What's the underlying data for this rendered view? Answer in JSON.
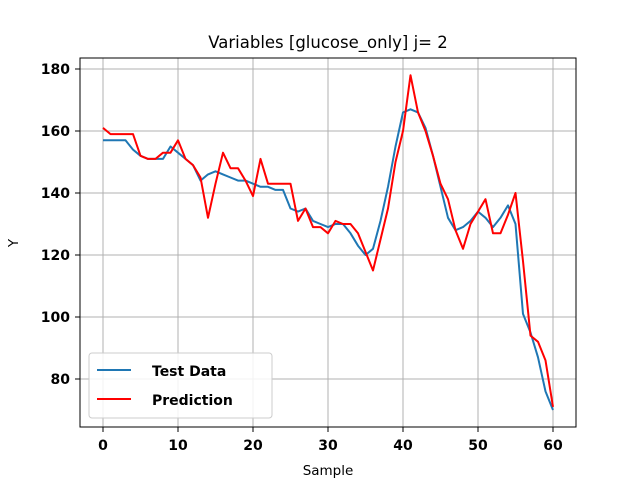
{
  "chart_data": {
    "type": "line",
    "title": "Variables [glucose_only] j= 2",
    "xlabel": "Sample",
    "ylabel": "Y",
    "xlim": [
      -3,
      63
    ],
    "ylim": [
      65,
      185
    ],
    "xticks": [
      0,
      10,
      20,
      30,
      40,
      50,
      60
    ],
    "yticks": [
      80,
      100,
      120,
      140,
      160,
      180
    ],
    "grid": true,
    "legend_position": "lower left",
    "x": [
      0,
      1,
      2,
      3,
      4,
      5,
      6,
      7,
      8,
      9,
      10,
      11,
      12,
      13,
      14,
      15,
      16,
      17,
      18,
      19,
      20,
      21,
      22,
      23,
      24,
      25,
      26,
      27,
      28,
      29,
      30,
      31,
      32,
      33,
      34,
      35,
      36,
      37,
      38,
      39,
      40,
      41,
      42,
      43,
      44,
      45,
      46,
      47,
      48,
      49,
      50,
      51,
      52,
      53,
      54,
      55,
      56,
      57,
      58,
      59,
      60
    ],
    "series": [
      {
        "name": "Test Data",
        "color": "#1f77b4",
        "values": [
          157,
          157,
          157,
          157,
          154,
          152,
          151,
          151,
          151,
          155,
          153,
          151,
          149,
          144,
          146,
          147,
          146,
          145,
          144,
          144,
          143,
          142,
          142,
          141,
          141,
          135,
          134,
          135,
          131,
          130,
          129,
          130,
          130,
          127,
          123,
          120,
          122,
          131,
          142,
          155,
          166,
          167,
          166,
          161,
          152,
          142,
          132,
          128,
          129,
          131,
          134,
          132,
          129,
          132,
          136,
          130,
          101,
          95,
          87,
          76,
          70
        ]
      },
      {
        "name": "Prediction",
        "color": "#ff0000",
        "values": [
          161,
          159,
          159,
          159,
          159,
          152,
          151,
          151,
          153,
          153,
          157,
          151,
          149,
          145,
          132,
          143,
          153,
          148,
          148,
          144,
          139,
          151,
          143,
          143,
          143,
          143,
          131,
          135,
          129,
          129,
          127,
          131,
          130,
          130,
          127,
          121,
          115,
          125,
          135,
          150,
          160,
          178,
          166,
          160,
          152,
          143,
          138,
          128,
          122,
          130,
          134,
          138,
          127,
          127,
          133,
          140,
          118,
          94,
          92,
          86,
          71
        ]
      }
    ]
  }
}
